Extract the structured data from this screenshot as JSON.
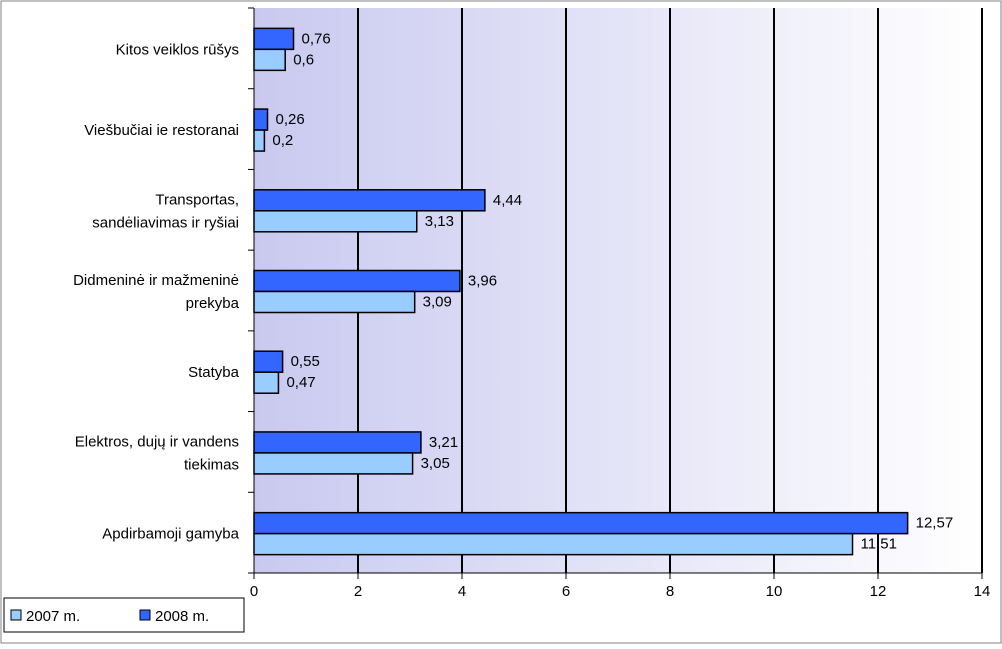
{
  "chart_data": {
    "type": "bar",
    "orientation": "horizontal",
    "categories": [
      "Kitos veiklos rūšys",
      "Viešbučiai ie restoranai",
      "Transportas, sandėliavimas ir ryšiai",
      "Didmeninė ir mažmeninė prekyba",
      "Statyba",
      "Elektros, dujų ir vandens tiekimas",
      "Apdirbamoji gamyba"
    ],
    "category_lines": [
      [
        "Kitos veiklos rūšys"
      ],
      [
        "Viešbučiai ie restoranai"
      ],
      [
        "Transportas,",
        "sandėliavimas ir ryšiai"
      ],
      [
        "Didmeninė ir mažmeninė",
        "prekyba"
      ],
      [
        "Statyba"
      ],
      [
        "Elektros, dujų ir vandens",
        "tiekimas"
      ],
      [
        "Apdirbamoji gamyba"
      ]
    ],
    "series": [
      {
        "name": "2007 m.",
        "color": "#99ccff",
        "values": [
          0.6,
          0.2,
          3.13,
          3.09,
          0.47,
          3.05,
          11.51
        ],
        "labels": [
          "0,6",
          "0,2",
          "3,13",
          "3,09",
          "0,47",
          "3,05",
          "11,51"
        ]
      },
      {
        "name": "2008 m.",
        "color": "#3366ff",
        "values": [
          0.76,
          0.26,
          4.44,
          3.96,
          0.55,
          3.21,
          12.57
        ],
        "labels": [
          "0,76",
          "0,26",
          "4,44",
          "3,96",
          "0,55",
          "3,21",
          "12,57"
        ]
      }
    ],
    "xlim": [
      0,
      14
    ],
    "xticks": [
      0,
      2,
      4,
      6,
      8,
      10,
      12,
      14
    ],
    "xtick_labels": [
      "0",
      "2",
      "4",
      "6",
      "8",
      "10",
      "12",
      "14"
    ],
    "grid": "vertical",
    "legend": "bottom-left",
    "plot_background": "gradient lavender to white",
    "title": "",
    "xlabel": "",
    "ylabel": ""
  }
}
